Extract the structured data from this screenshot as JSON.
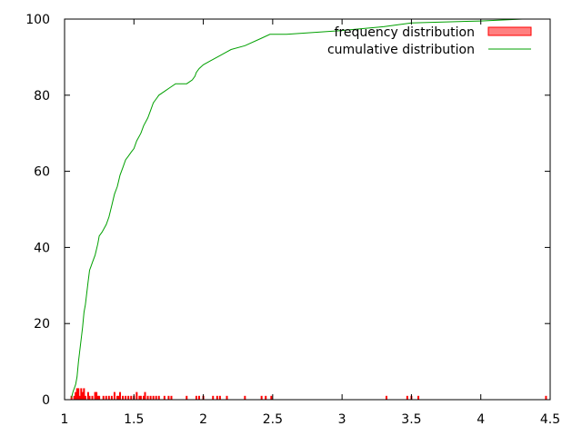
{
  "chart_data": {
    "type": "bar",
    "title": "",
    "xlabel": "",
    "ylabel": "",
    "xlim": [
      1,
      4.5
    ],
    "ylim": [
      0,
      100
    ],
    "x_ticks": [
      "1",
      "1.5",
      "2",
      "2.5",
      "3",
      "3.5",
      "4",
      "4.5"
    ],
    "y_ticks": [
      "0",
      "20",
      "40",
      "60",
      "80",
      "100"
    ],
    "grid": false,
    "legend_position": "top-right",
    "legend": [
      "frequency distribution",
      "cumulative distribution"
    ],
    "series": [
      {
        "name": "frequency distribution",
        "style": "bar",
        "color": "#ff0000",
        "x": [
          1.05,
          1.07,
          1.08,
          1.09,
          1.1,
          1.11,
          1.12,
          1.13,
          1.14,
          1.15,
          1.17,
          1.18,
          1.2,
          1.22,
          1.23,
          1.24,
          1.25,
          1.28,
          1.3,
          1.32,
          1.34,
          1.36,
          1.38,
          1.39,
          1.4,
          1.42,
          1.44,
          1.46,
          1.48,
          1.5,
          1.52,
          1.54,
          1.55,
          1.57,
          1.58,
          1.6,
          1.62,
          1.64,
          1.66,
          1.68,
          1.72,
          1.75,
          1.77,
          1.88,
          1.95,
          1.97,
          2.0,
          2.07,
          2.1,
          2.12,
          2.17,
          2.3,
          2.42,
          2.45,
          2.49,
          3.32,
          3.47,
          3.5,
          3.55,
          4.47
        ],
        "values": [
          1,
          1,
          2,
          3,
          3,
          1,
          3,
          2,
          3,
          1,
          2,
          1,
          1,
          2,
          2,
          1,
          1,
          1,
          1,
          1,
          1,
          2,
          1,
          1,
          2,
          1,
          1,
          1,
          1,
          1,
          2,
          1,
          1,
          1,
          2,
          1,
          1,
          1,
          1,
          1,
          1,
          1,
          1,
          1,
          1,
          1,
          1,
          1,
          1,
          1,
          1,
          1,
          1,
          1,
          1,
          1,
          1,
          1,
          1,
          1
        ]
      },
      {
        "name": "cumulative distribution",
        "style": "line",
        "color": "#00a000",
        "x": [
          1.05,
          1.06,
          1.07,
          1.08,
          1.09,
          1.1,
          1.11,
          1.12,
          1.13,
          1.14,
          1.15,
          1.16,
          1.17,
          1.18,
          1.19,
          1.2,
          1.22,
          1.24,
          1.25,
          1.27,
          1.3,
          1.32,
          1.34,
          1.36,
          1.38,
          1.4,
          1.42,
          1.44,
          1.46,
          1.48,
          1.5,
          1.52,
          1.55,
          1.57,
          1.6,
          1.62,
          1.64,
          1.66,
          1.68,
          1.72,
          1.76,
          1.8,
          1.88,
          1.92,
          1.94,
          1.95,
          1.97,
          2.0,
          2.05,
          2.1,
          2.15,
          2.2,
          2.3,
          2.42,
          2.48,
          2.6,
          3.0,
          3.3,
          3.5,
          4.0,
          4.3,
          4.35
        ],
        "values": [
          0.5,
          2,
          3,
          4,
          6,
          10,
          13,
          16,
          19,
          23,
          25,
          28,
          31,
          34,
          35,
          36,
          38,
          41,
          43,
          44,
          46,
          48,
          51,
          54,
          56,
          59,
          61,
          63,
          64,
          65,
          66,
          68,
          70,
          72,
          74,
          76,
          78,
          79,
          80,
          81,
          82,
          83,
          83,
          84,
          85,
          86,
          87,
          88,
          89,
          90,
          91,
          92,
          93,
          95,
          96,
          96,
          97,
          98,
          99,
          99.5,
          100,
          100
        ]
      }
    ]
  }
}
